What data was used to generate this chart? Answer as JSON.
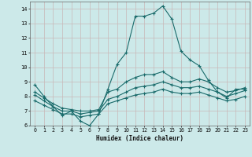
{
  "xlabel": "Humidex (Indice chaleur)",
  "xlim": [
    -0.5,
    23.5
  ],
  "ylim": [
    6,
    14.5
  ],
  "yticks": [
    6,
    7,
    8,
    9,
    10,
    11,
    12,
    13,
    14
  ],
  "xticks": [
    0,
    1,
    2,
    3,
    4,
    5,
    6,
    7,
    8,
    9,
    10,
    11,
    12,
    13,
    14,
    15,
    16,
    17,
    18,
    19,
    20,
    21,
    22,
    23
  ],
  "bg_color": "#cce9e9",
  "grid_color": "#b8d8d8",
  "line_color": "#1a6b6b",
  "lines": [
    {
      "x": [
        0,
        1,
        2,
        3,
        4,
        5,
        6,
        7,
        8,
        9,
        10,
        11,
        12,
        13,
        14,
        15,
        16,
        17,
        18,
        19,
        20,
        21,
        22,
        23
      ],
      "y": [
        8.8,
        8.0,
        7.3,
        6.7,
        7.0,
        6.3,
        6.0,
        6.8,
        8.5,
        10.2,
        11.0,
        13.5,
        13.5,
        13.7,
        14.2,
        13.3,
        11.1,
        10.5,
        10.1,
        9.1,
        8.3,
        7.9,
        8.5,
        8.5
      ]
    },
    {
      "x": [
        0,
        1,
        2,
        3,
        4,
        5,
        6,
        7,
        8,
        9,
        10,
        11,
        12,
        13,
        14,
        15,
        16,
        17,
        18,
        19,
        20,
        21,
        22,
        23
      ],
      "y": [
        8.3,
        7.9,
        7.5,
        7.2,
        7.1,
        7.0,
        7.0,
        7.1,
        8.3,
        8.5,
        9.0,
        9.3,
        9.5,
        9.5,
        9.7,
        9.3,
        9.0,
        9.0,
        9.2,
        9.0,
        8.6,
        8.3,
        8.4,
        8.6
      ]
    },
    {
      "x": [
        0,
        1,
        2,
        3,
        4,
        5,
        6,
        7,
        8,
        9,
        10,
        11,
        12,
        13,
        14,
        15,
        16,
        17,
        18,
        19,
        20,
        21,
        22,
        23
      ],
      "y": [
        8.1,
        7.7,
        7.3,
        7.0,
        7.0,
        6.8,
        6.9,
        7.0,
        7.8,
        8.0,
        8.3,
        8.6,
        8.7,
        8.8,
        9.0,
        8.8,
        8.6,
        8.6,
        8.7,
        8.5,
        8.3,
        8.0,
        8.2,
        8.4
      ]
    },
    {
      "x": [
        0,
        1,
        2,
        3,
        4,
        5,
        6,
        7,
        8,
        9,
        10,
        11,
        12,
        13,
        14,
        15,
        16,
        17,
        18,
        19,
        20,
        21,
        22,
        23
      ],
      "y": [
        7.7,
        7.4,
        7.1,
        6.8,
        6.8,
        6.6,
        6.7,
        6.8,
        7.5,
        7.7,
        7.9,
        8.1,
        8.2,
        8.3,
        8.5,
        8.3,
        8.2,
        8.2,
        8.3,
        8.1,
        7.9,
        7.7,
        7.8,
        8.0
      ]
    }
  ]
}
